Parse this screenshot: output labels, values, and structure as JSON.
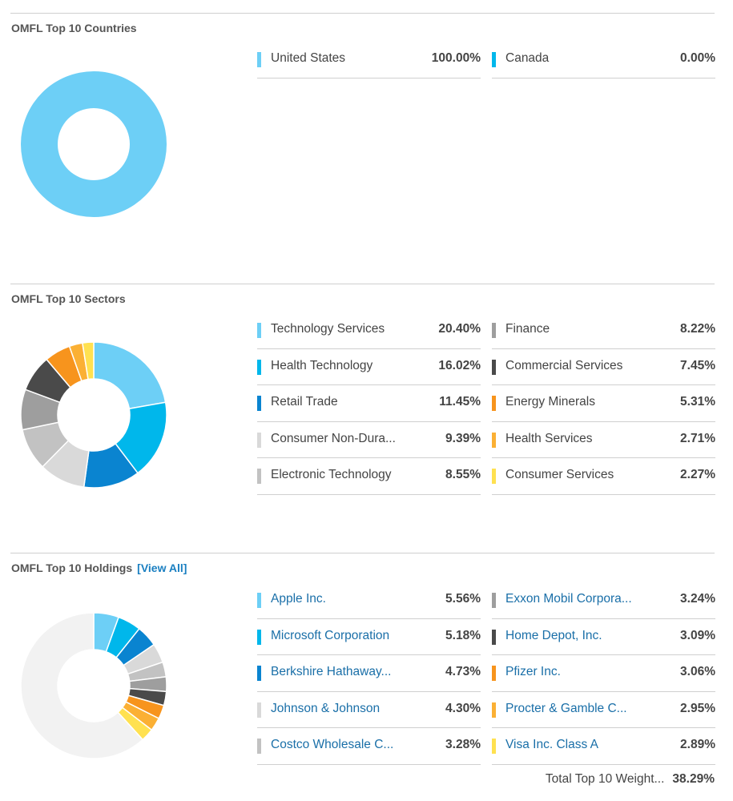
{
  "countries": {
    "title": "OMFL Top 10 Countries",
    "items": [
      {
        "label": "United States",
        "value": "100.00%",
        "color": "#6dcff6"
      },
      {
        "label": "Canada",
        "value": "0.00%",
        "color": "#00b7eb"
      }
    ]
  },
  "sectors": {
    "title": "OMFL Top 10 Sectors",
    "items": [
      {
        "label": "Technology Services",
        "value": "20.40%",
        "color": "#6dcff6"
      },
      {
        "label": "Health Technology",
        "value": "16.02%",
        "color": "#00b7eb"
      },
      {
        "label": "Retail Trade",
        "value": "11.45%",
        "color": "#0a84d0"
      },
      {
        "label": "Consumer Non-Dura...",
        "value": "9.39%",
        "color": "#d9d9d9"
      },
      {
        "label": "Electronic Technology",
        "value": "8.55%",
        "color": "#c2c2c2"
      },
      {
        "label": "Finance",
        "value": "8.22%",
        "color": "#9e9e9e"
      },
      {
        "label": "Commercial Services",
        "value": "7.45%",
        "color": "#4a4a4a"
      },
      {
        "label": "Energy Minerals",
        "value": "5.31%",
        "color": "#f7941d"
      },
      {
        "label": "Health Services",
        "value": "2.71%",
        "color": "#fbb034"
      },
      {
        "label": "Consumer Services",
        "value": "2.27%",
        "color": "#ffe150"
      }
    ]
  },
  "holdings": {
    "title": "OMFL Top 10 Holdings",
    "view_all": "[View All]",
    "items": [
      {
        "label": "Apple Inc.",
        "value": "5.56%",
        "color": "#6dcff6"
      },
      {
        "label": "Microsoft Corporation",
        "value": "5.18%",
        "color": "#00b7eb"
      },
      {
        "label": "Berkshire Hathaway...",
        "value": "4.73%",
        "color": "#0a84d0"
      },
      {
        "label": "Johnson & Johnson",
        "value": "4.30%",
        "color": "#d9d9d9"
      },
      {
        "label": "Costco Wholesale C...",
        "value": "3.28%",
        "color": "#c2c2c2"
      },
      {
        "label": "Exxon Mobil Corpora...",
        "value": "3.24%",
        "color": "#9e9e9e"
      },
      {
        "label": "Home Depot, Inc.",
        "value": "3.09%",
        "color": "#4a4a4a"
      },
      {
        "label": "Pfizer Inc.",
        "value": "3.06%",
        "color": "#f7941d"
      },
      {
        "label": "Procter & Gamble C...",
        "value": "2.95%",
        "color": "#fbb034"
      },
      {
        "label": "Visa Inc. Class A",
        "value": "2.89%",
        "color": "#ffe150"
      }
    ],
    "total_label": "Total Top 10 Weight...",
    "total_value": "38.29%"
  },
  "chart_data": [
    {
      "type": "pie",
      "title": "OMFL Top 10 Countries",
      "categories": [
        "United States",
        "Canada"
      ],
      "values": [
        100.0,
        0.0
      ],
      "unit": "%"
    },
    {
      "type": "pie",
      "title": "OMFL Top 10 Sectors",
      "categories": [
        "Technology Services",
        "Health Technology",
        "Retail Trade",
        "Consumer Non-Dura...",
        "Electronic Technology",
        "Finance",
        "Commercial Services",
        "Energy Minerals",
        "Health Services",
        "Consumer Services"
      ],
      "values": [
        20.4,
        16.02,
        11.45,
        9.39,
        8.55,
        8.22,
        7.45,
        5.31,
        2.71,
        2.27
      ],
      "unit": "%"
    },
    {
      "type": "pie",
      "title": "OMFL Top 10 Holdings",
      "categories": [
        "Apple Inc.",
        "Microsoft Corporation",
        "Berkshire Hathaway...",
        "Johnson & Johnson",
        "Costco Wholesale C...",
        "Exxon Mobil Corpora...",
        "Home Depot, Inc.",
        "Pfizer Inc.",
        "Procter & Gamble C...",
        "Visa Inc. Class A"
      ],
      "values": [
        5.56,
        5.18,
        4.73,
        4.3,
        3.28,
        3.24,
        3.09,
        3.06,
        2.95,
        2.89
      ],
      "unit": "%"
    }
  ]
}
